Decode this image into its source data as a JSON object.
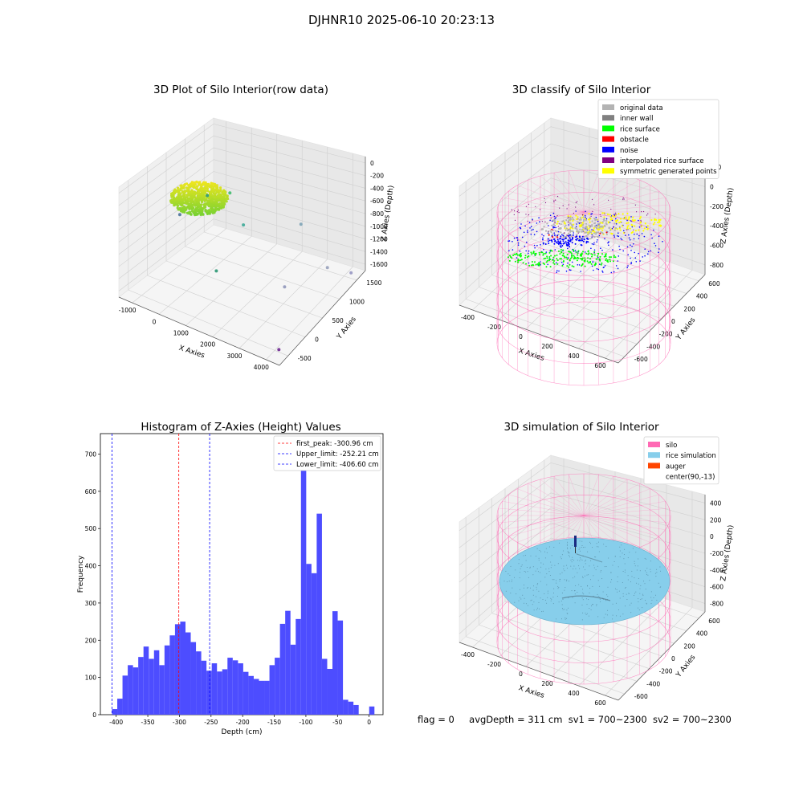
{
  "figure": {
    "title": "DJHNR10 2025-06-10 20:23:13",
    "footer": {
      "flag": "flag = 0",
      "avg_depth": "avgDepth = 311 cm",
      "sv1": "sv1 = 700~2300",
      "sv2": "sv2 = 700~2300"
    }
  },
  "colors": {
    "original_data": "#b3b3b3",
    "inner_wall": "#808080",
    "rice_surface": "#00ff00",
    "obstacle": "#ff0000",
    "noise": "#0000ff",
    "interpolated_rice_surface": "#800080",
    "symmetric_generated_points": "#ffff00",
    "silo": "#ff69b4",
    "rice_simulation": "#87ceeb",
    "auger": "#ff4500",
    "histogram_bar": "#4d4dff"
  },
  "chart_data": [
    {
      "type": "scatter",
      "title": "3D Plot of Silo Interior(row data)",
      "projection": "3d",
      "xlabel": "X Axies",
      "ylabel": "Y Axies",
      "zlabel": "Z Axies (Depth)",
      "xticks": [
        "-1000",
        "0",
        "1000",
        "2000",
        "3000",
        "4000"
      ],
      "yticks": [
        "-500",
        "0",
        "500",
        "1000",
        "1500"
      ],
      "zticks": [
        "0",
        "-200",
        "-400",
        "-600",
        "-800",
        "-1000",
        "-1200",
        "-1400",
        "-1600"
      ],
      "points": [
        {
          "x": -1100,
          "y": 700,
          "z": -1000
        },
        {
          "x": -400,
          "y": 900,
          "z": -650
        },
        {
          "x": 400,
          "y": 900,
          "z": -450
        },
        {
          "x": 1300,
          "y": 600,
          "z": -650
        },
        {
          "x": 1600,
          "y": -300,
          "z": -900
        },
        {
          "x": 2500,
          "y": 1200,
          "z": -700
        },
        {
          "x": 2900,
          "y": 500,
          "z": -1300
        },
        {
          "x": 3300,
          "y": 1300,
          "z": -1300
        },
        {
          "x": 4000,
          "y": 1400,
          "z": -1300
        },
        {
          "x": 4100,
          "y": -500,
          "z": -1600
        }
      ],
      "grid": true
    },
    {
      "type": "scatter",
      "title": "3D classify of Silo Interior",
      "projection": "3d",
      "xlabel": "X Axies",
      "ylabel": "Y Axies",
      "zlabel": "Z Axies (Depth)",
      "xticks": [
        "-400",
        "-200",
        "0",
        "200",
        "400",
        "600"
      ],
      "yticks": [
        "-600",
        "-400",
        "-200",
        "0",
        "200",
        "400",
        "600"
      ],
      "zticks": [
        "200",
        "0",
        "-200",
        "-400",
        "-600",
        "-800"
      ],
      "legend": [
        {
          "label": "original data",
          "color": "#b3b3b3"
        },
        {
          "label": "inner wall",
          "color": "#808080"
        },
        {
          "label": "rice surface",
          "color": "#00ff00"
        },
        {
          "label": "obstacle",
          "color": "#ff0000"
        },
        {
          "label": "noise",
          "color": "#0000ff"
        },
        {
          "label": "interpolated rice surface",
          "color": "#800080"
        },
        {
          "label": "symmetric generated points",
          "color": "#ffff00"
        }
      ],
      "legend_position": "top-right",
      "grid": true
    },
    {
      "type": "bar",
      "title": "Histogram of Z-Axies (Height) Values",
      "xlabel": "Depth (cm)",
      "ylabel": "Frequency",
      "xlim": [
        -425,
        22
      ],
      "ylim": [
        0,
        755
      ],
      "xticks": [
        -400,
        -350,
        -300,
        -250,
        -200,
        -150,
        -100,
        -50,
        0
      ],
      "yticks": [
        0,
        100,
        200,
        300,
        400,
        500,
        600,
        700
      ],
      "bin_start": -406.6,
      "bin_width": 8.3,
      "values": [
        15,
        43,
        105,
        133,
        127,
        155,
        183,
        150,
        173,
        133,
        186,
        213,
        243,
        250,
        221,
        195,
        170,
        145,
        118,
        138,
        116,
        122,
        153,
        146,
        138,
        115,
        104,
        96,
        91,
        91,
        133,
        153,
        244,
        279,
        188,
        257,
        718,
        405,
        380,
        540,
        150,
        123,
        278,
        253,
        40,
        35,
        26,
        0,
        0,
        22
      ],
      "lines": [
        {
          "label": "first_peak: -300.96 cm",
          "x": -300.96,
          "color": "#ff0000"
        },
        {
          "label": "Upper_limit: -252.21 cm",
          "x": -252.21,
          "color": "#0000ff"
        },
        {
          "label": "Lower_limit: -406.60 cm",
          "x": -406.6,
          "color": "#0000ff"
        }
      ],
      "legend_position": "top-right"
    },
    {
      "type": "scatter",
      "title": "3D simulation of Silo Interior",
      "projection": "3d",
      "xlabel": "X Axies",
      "ylabel": "Y Axies",
      "zlabel": "Z Axies (Depth)",
      "xticks": [
        "-400",
        "-200",
        "0",
        "200",
        "400",
        "600"
      ],
      "yticks": [
        "-600",
        "-400",
        "-200",
        "0",
        "200",
        "400",
        "600"
      ],
      "zticks": [
        "400",
        "200",
        "0",
        "-200",
        "-400",
        "-600",
        "-800"
      ],
      "legend": [
        {
          "label": "silo",
          "color": "#ff69b4"
        },
        {
          "label": "rice simulation",
          "color": "#87ceeb"
        },
        {
          "label": "auger",
          "color": "#ff4500"
        },
        {
          "label": "center(90,-13)",
          "color": ""
        }
      ],
      "legend_position": "top-right",
      "grid": true
    }
  ]
}
